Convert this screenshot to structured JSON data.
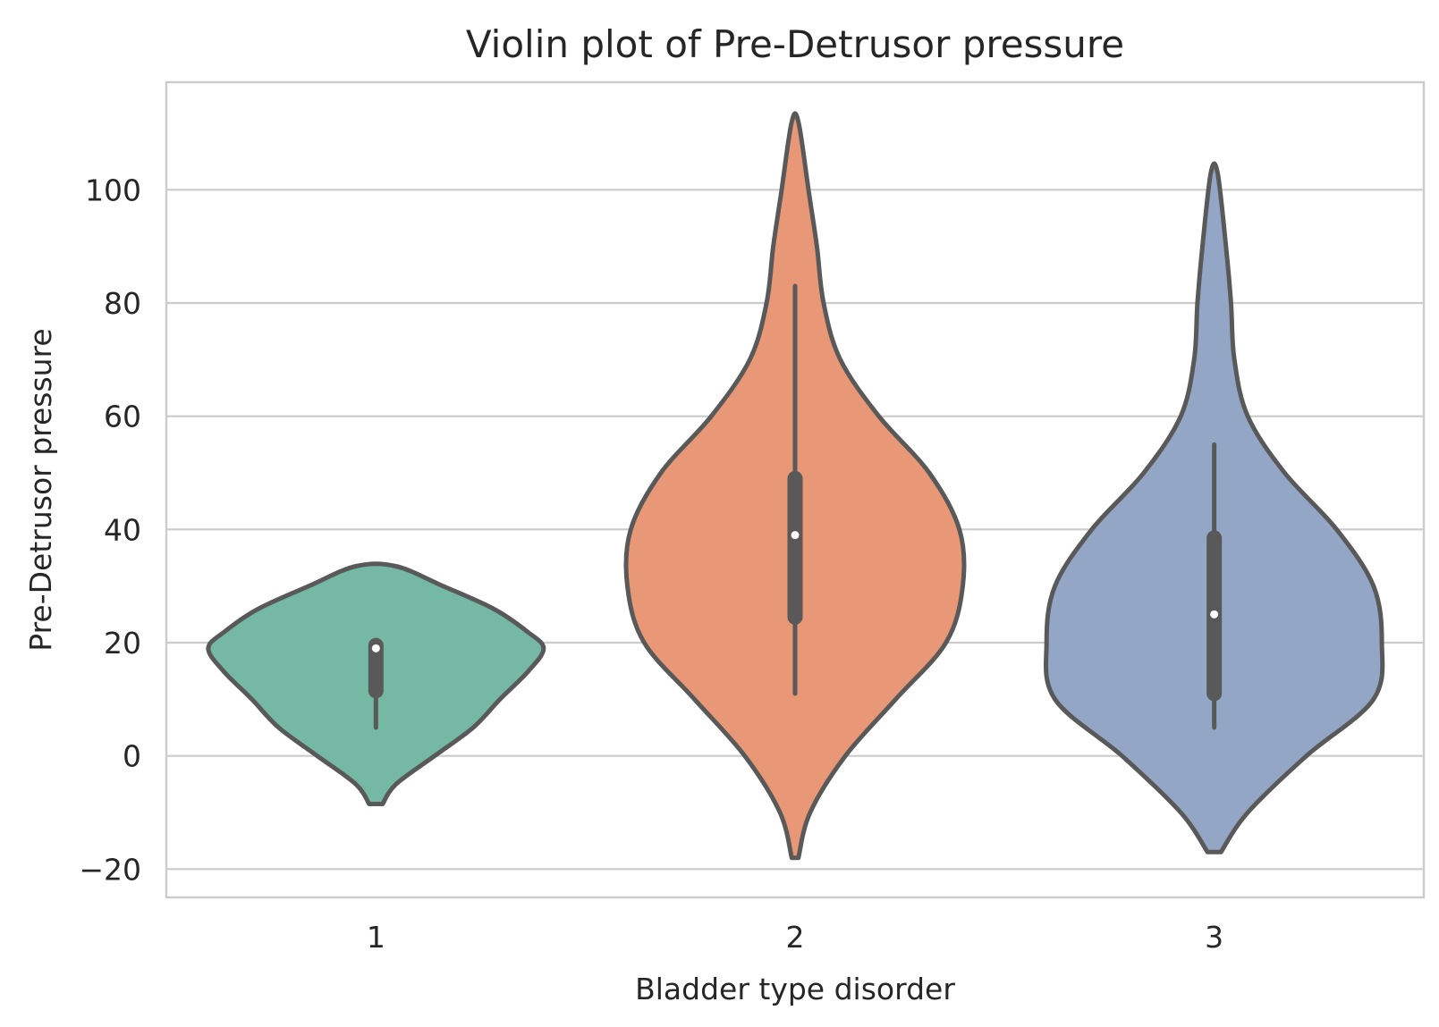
{
  "chart_data": {
    "type": "violin",
    "title": "Violin plot of Pre-Detrusor pressure",
    "xlabel": "Bladder type disorder",
    "ylabel": "Pre-Detrusor pressure",
    "categories": [
      "1",
      "2",
      "3"
    ],
    "colors": [
      "#75b8a3",
      "#e99877",
      "#94a6c6"
    ],
    "ylim": [
      -25,
      119
    ],
    "yticks": [
      -20,
      0,
      20,
      40,
      60,
      80,
      100
    ],
    "ytick_labels": [
      "−20",
      "0",
      "20",
      "40",
      "60",
      "80",
      "100"
    ],
    "grid": true,
    "violins": [
      {
        "category": "1",
        "profile": [
          [
            -8.5,
            0.04
          ],
          [
            -5,
            0.12
          ],
          [
            0,
            0.35
          ],
          [
            5,
            0.58
          ],
          [
            10,
            0.74
          ],
          [
            15,
            0.91
          ],
          [
            19,
            1.0
          ],
          [
            22,
            0.9
          ],
          [
            26,
            0.7
          ],
          [
            30,
            0.4
          ],
          [
            33.5,
            0.12
          ]
        ],
        "whisker": [
          5,
          19.5
        ],
        "box": [
          11.5,
          19.5
        ],
        "median": 19
      },
      {
        "category": "2",
        "profile": [
          [
            -18,
            0.02
          ],
          [
            -10,
            0.09
          ],
          [
            0,
            0.3
          ],
          [
            10,
            0.6
          ],
          [
            20,
            0.9
          ],
          [
            30,
            1.0
          ],
          [
            40,
            0.98
          ],
          [
            50,
            0.8
          ],
          [
            60,
            0.5
          ],
          [
            70,
            0.27
          ],
          [
            80,
            0.17
          ],
          [
            90,
            0.13
          ],
          [
            100,
            0.08
          ],
          [
            112,
            0.02
          ]
        ],
        "whisker": [
          11,
          83
        ],
        "box": [
          24.5,
          49
        ],
        "median": 39
      },
      {
        "category": "3",
        "profile": [
          [
            -17,
            0.04
          ],
          [
            -10,
            0.2
          ],
          [
            0,
            0.55
          ],
          [
            10,
            0.95
          ],
          [
            20,
            1.0
          ],
          [
            30,
            0.95
          ],
          [
            40,
            0.73
          ],
          [
            50,
            0.42
          ],
          [
            60,
            0.2
          ],
          [
            70,
            0.12
          ],
          [
            80,
            0.1
          ],
          [
            90,
            0.07
          ],
          [
            103,
            0.02
          ]
        ],
        "whisker": [
          5,
          55
        ],
        "box": [
          11,
          38.5
        ],
        "median": 25
      }
    ]
  }
}
